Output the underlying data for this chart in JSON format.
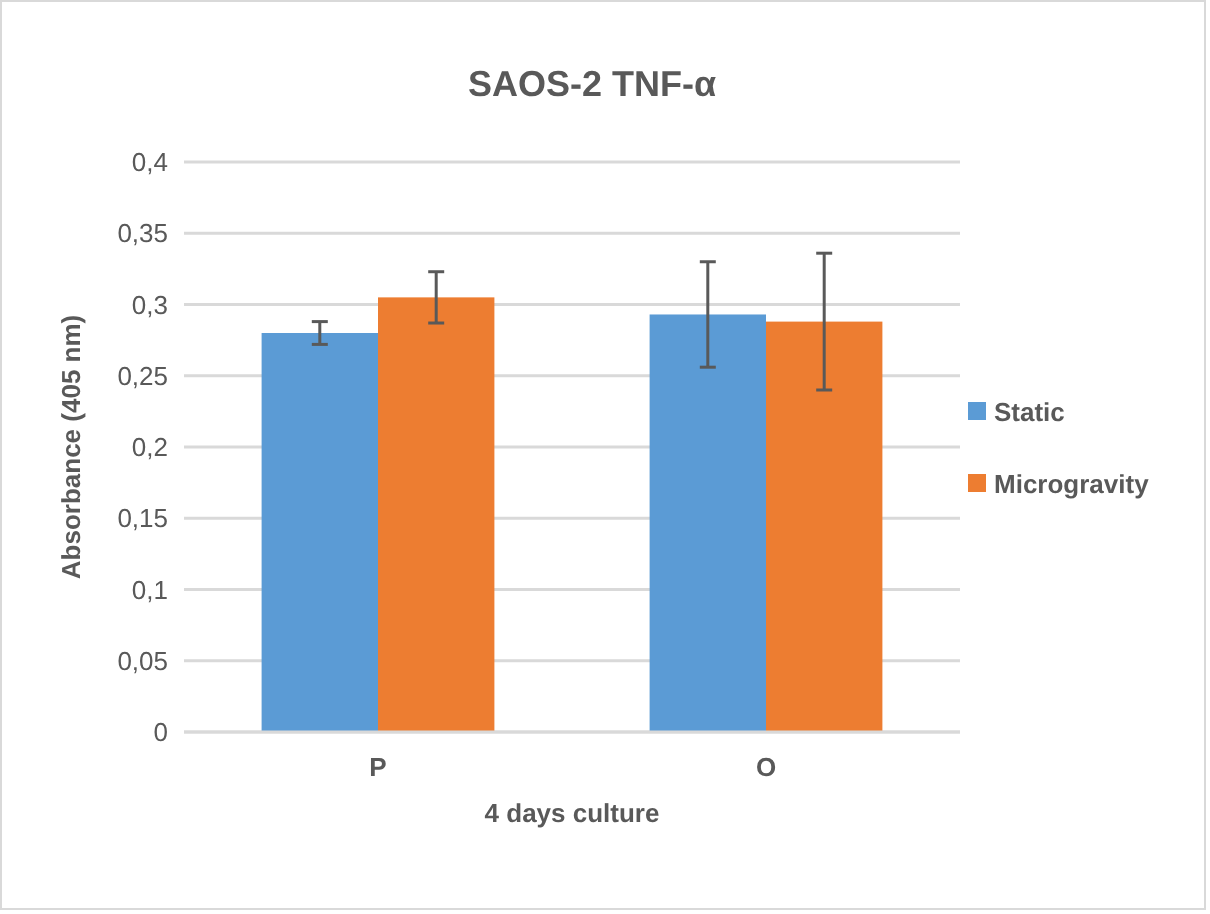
{
  "chart_data": {
    "type": "bar",
    "title": "SAOS-2  TNF-α",
    "xlabel": "4 days culture",
    "ylabel": "Absorbance (405 nm)",
    "categories": [
      "P",
      "O"
    ],
    "series": [
      {
        "name": "Static",
        "color": "#5b9bd5",
        "values": [
          0.28,
          0.293
        ],
        "errors": [
          0.008,
          0.037
        ]
      },
      {
        "name": "Microgravity",
        "color": "#ed7d31",
        "values": [
          0.305,
          0.288
        ],
        "errors": [
          0.018,
          0.048
        ]
      }
    ],
    "ylim": [
      0,
      0.4
    ],
    "yticks": [
      0,
      {
        "value": 0.05,
        "label": "0,05"
      },
      {
        "value": 0.1,
        "label": "0,1"
      },
      {
        "value": 0.15,
        "label": "0,15"
      },
      {
        "value": 0.2,
        "label": "0,2"
      },
      {
        "value": 0.25,
        "label": "0,25"
      },
      {
        "value": 0.3,
        "label": "0,3"
      },
      {
        "value": 0.35,
        "label": "0,35"
      },
      {
        "value": 0.4,
        "label": "0,4"
      }
    ],
    "grid": "y",
    "legend": "right"
  }
}
